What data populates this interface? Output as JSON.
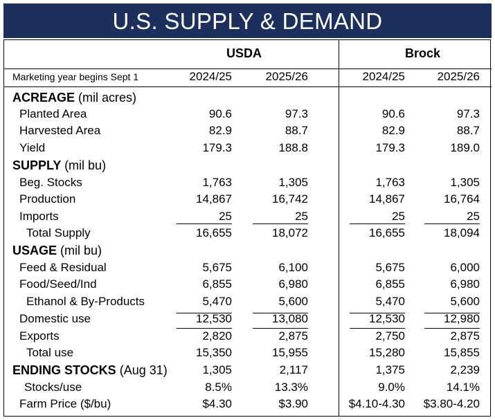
{
  "title": "U.S. SUPPLY & DEMAND",
  "sources": {
    "usda": "USDA",
    "brock": "Brock"
  },
  "marketing_label": "Marketing year begins Sept 1",
  "years": [
    "2024/25",
    "2025/26",
    "2024/25",
    "2025/26"
  ],
  "sections": {
    "acreage": {
      "title": "ACREAGE",
      "unit": "(mil acres)"
    },
    "supply": {
      "title": "SUPPLY",
      "unit": "(mil bu)"
    },
    "usage": {
      "title": "USAGE",
      "unit": "(mil bu)"
    },
    "ending": {
      "title": "ENDING STOCKS",
      "unit": "(Aug 31)"
    }
  },
  "rows": {
    "planted": {
      "label": "Planted Area",
      "v": [
        "90.6",
        "97.3",
        "90.6",
        "97.3"
      ]
    },
    "harvested": {
      "label": "Harvested Area",
      "v": [
        "82.9",
        "88.7",
        "82.9",
        "88.7"
      ]
    },
    "yield": {
      "label": "Yield",
      "v": [
        "179.3",
        "188.8",
        "179.3",
        "189.0"
      ]
    },
    "beg": {
      "label": "Beg. Stocks",
      "v": [
        "1,763",
        "1,305",
        "1,763",
        "1,305"
      ]
    },
    "prod": {
      "label": "Production",
      "v": [
        "14,867",
        "16,742",
        "14,867",
        "16,764"
      ]
    },
    "imports": {
      "label": "Imports",
      "v": [
        "25",
        "25",
        "25",
        "25"
      ]
    },
    "total_supply": {
      "label": "Total Supply",
      "v": [
        "16,655",
        "18,072",
        "16,655",
        "18,094"
      ]
    },
    "feed": {
      "label": "Feed & Residual",
      "v": [
        "5,675",
        "6,100",
        "5,675",
        "6,000"
      ]
    },
    "food": {
      "label": "Food/Seed/Ind",
      "v": [
        "6,855",
        "6,980",
        "6,855",
        "6,980"
      ]
    },
    "ethanol": {
      "label": "Ethanol & By-Products",
      "v": [
        "5,470",
        "5,600",
        "5,470",
        "5,600"
      ]
    },
    "domestic": {
      "label": "Domestic use",
      "v": [
        "12,530",
        "13,080",
        "12,530",
        "12,980"
      ]
    },
    "exports": {
      "label": "Exports",
      "v": [
        "2,820",
        "2,875",
        "2,750",
        "2,875"
      ]
    },
    "total_use": {
      "label": "Total use",
      "v": [
        "15,350",
        "15,955",
        "15,280",
        "15,855"
      ]
    },
    "ending": {
      "label": "",
      "v": [
        "1,305",
        "2,117",
        "1,375",
        "2,239"
      ]
    },
    "stocks_use": {
      "label": "Stocks/use",
      "v": [
        "8.5%",
        "13.3%",
        "9.0%",
        "14.1%"
      ]
    },
    "price": {
      "label": "Farm Price ($/bu)",
      "v": [
        "$4.30",
        "$3.90",
        "$4.10-4.30",
        "$3.80-4.20"
      ]
    }
  }
}
